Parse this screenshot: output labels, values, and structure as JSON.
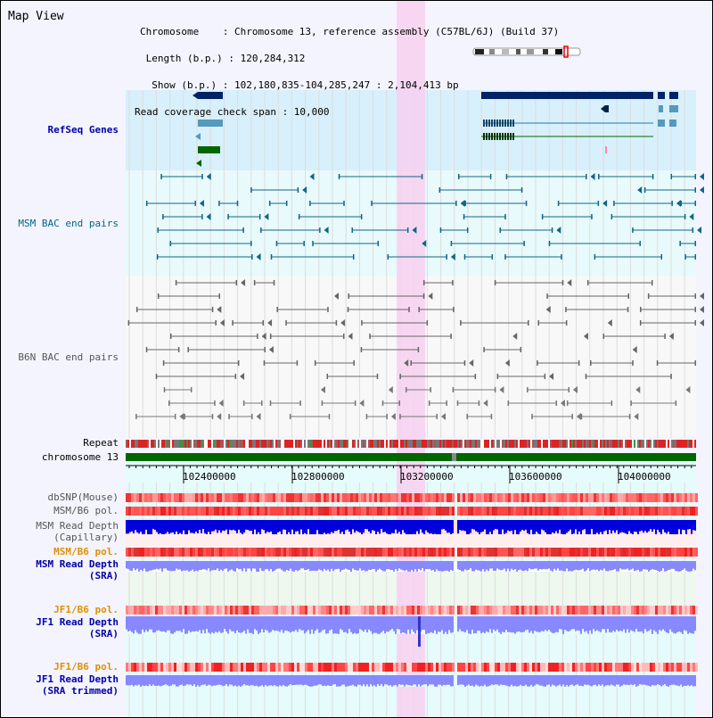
{
  "title": "Map View",
  "header": {
    "chromosome": "Chromosome    : Chromosome 13, reference assembly (C57BL/6J) (Build 37)",
    "length": " Length (b.p.) : 120,284,312",
    "show": "  Show (b.p.) : 102,180,835-104,285,247 : 2,104,413 bp",
    "span": "Read coverage check span : 10,000"
  },
  "tracks": {
    "refseq": "RefSeq Genes",
    "msm_bac": "MSM BAC end pairs",
    "b6n_bac": "B6N BAC end pairs",
    "repeat": "Repeat",
    "chromosome": "chromosome 13",
    "dbsnp": "dbSNP(Mouse)",
    "msm_b6_pol_1": "MSM/B6 pol.",
    "msm_depth_cap_1": "MSM Read Depth",
    "msm_depth_cap_2": "(Capillary)",
    "msm_b6_pol_2": "MSM/B6 pol.",
    "msm_depth_sra_1": "MSM Read Depth",
    "msm_depth_sra_2": "(SRA)",
    "jf1_b6_pol_1": "JF1/B6 pol.",
    "jf1_depth_sra_1": "JF1 Read Depth",
    "jf1_depth_sra_2": "(SRA)",
    "jf1_b6_pol_2": "JF1/B6 pol.",
    "jf1_depth_trim_1": "JF1 Read Depth",
    "jf1_depth_trim_2": "(SRA trimmed)"
  },
  "axis": {
    "ticks": [
      "102400000",
      "102800000",
      "103200000",
      "103600000",
      "104000000"
    ]
  },
  "colors": {
    "refseq_bg": "#d8f0fb",
    "msm_bg": "#e8fafb",
    "highlight": "#f7d0f0",
    "chrom": "#006600",
    "depth_blue": "#0000dd",
    "depth_light": "#8888ff",
    "pol_red": "#ee2222"
  }
}
